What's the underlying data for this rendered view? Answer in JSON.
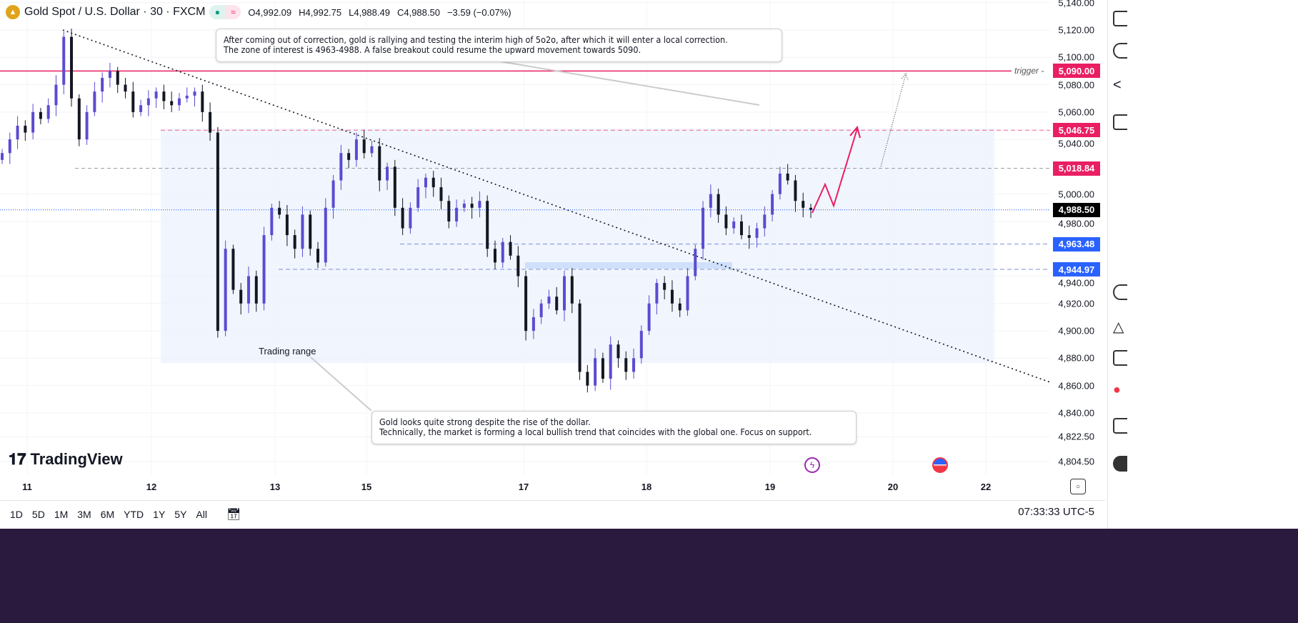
{
  "header": {
    "symbol_title": "Gold Spot / U.S. Dollar · 30 · FXCM",
    "logo_icon": "gold-bars-icon",
    "status_dot_color": "#089981",
    "wave_icon": "≈",
    "open": "O4,992.09",
    "high": "H4,992.75",
    "low": "L4,988.49",
    "close": "C4,988.50",
    "change": "−3.59 (−0.07%)"
  },
  "price_axis": [
    "5,140.00",
    "5,120.00",
    "5,100.00",
    "5,080.00",
    "5,060.00",
    "5,040.00",
    "5,000.00",
    "4,980.00",
    "4,940.00",
    "4,920.00",
    "4,900.00",
    "4,880.00",
    "4,860.00",
    "4,840.00",
    "4,822.50",
    "4,804.50"
  ],
  "price_axis_values": [
    5140,
    5120,
    5100,
    5080,
    5060,
    5040,
    5000,
    4980,
    4940,
    4920,
    4900,
    4880,
    4860,
    4840,
    4822.5,
    4804.5
  ],
  "levels": [
    {
      "label": "5,090.00",
      "value": 5090,
      "color": "#e91e63",
      "name": "trigger"
    },
    {
      "label": "5,046.75",
      "value": 5046.75,
      "color": "#e91e63"
    },
    {
      "label": "5,018.84",
      "value": 5018.84,
      "color": "#e91e63"
    },
    {
      "label": "4,988.50",
      "value": 4988.5,
      "color": "#000000"
    },
    {
      "label": "4,963.48",
      "value": 4963.48,
      "color": "#2962ff"
    },
    {
      "label": "4,944.97",
      "value": 4944.97,
      "color": "#2962ff"
    }
  ],
  "trigger_label": "trigger -",
  "notes": {
    "top": [
      "After coming out of correction, gold is rallying and testing the interim high of 5o2o, after which it will enter a local correction.",
      "The zone of interest is 4963-4988. A false breakout could resume the upward movement towards 5090."
    ],
    "bottom": [
      "Gold looks quite strong despite the rise of the dollar.",
      "Technically, the market is forming a local bullish trend that coincides with the global one. Focus on support."
    ],
    "range_label": "Trading range"
  },
  "time_axis": [
    "11",
    "12",
    "13",
    "15",
    "17",
    "18",
    "19",
    "20",
    "22"
  ],
  "brand": "TradingView",
  "ranges": [
    "1D",
    "5D",
    "1M",
    "3M",
    "6M",
    "YTD",
    "1Y",
    "5Y",
    "All"
  ],
  "clock": "07:33:33 UTC-5",
  "chart_data": {
    "type": "candlestick",
    "symbol": "Gold Spot / U.S. Dollar",
    "interval": "30",
    "ylim": [
      4800,
      5142
    ],
    "up_color": "#5b4bd1",
    "down_color": "#131722",
    "closes": [
      5030,
      5040,
      5050,
      5045,
      5060,
      5055,
      5065,
      5080,
      5115,
      5070,
      5040,
      5060,
      5075,
      5085,
      5090,
      5080,
      5075,
      5060,
      5065,
      5070,
      5075,
      5068,
      5065,
      5070,
      5072,
      5075,
      5060,
      5045,
      4900,
      4960,
      4930,
      4920,
      4940,
      4920,
      4970,
      4990,
      4985,
      4970,
      4960,
      4985,
      4960,
      4950,
      4990,
      5010,
      5030,
      5025,
      5040,
      5030,
      5035,
      5010,
      5020,
      4990,
      4975,
      4990,
      5005,
      5012,
      5005,
      4995,
      4980,
      4990,
      4993,
      4990,
      4995,
      4960,
      4950,
      4965,
      4955,
      4940,
      4900,
      4910,
      4920,
      4925,
      4915,
      4940,
      4920,
      4870,
      4860,
      4880,
      4865,
      4890,
      4880,
      4870,
      4880,
      4900,
      4920,
      4935,
      4930,
      4920,
      4915,
      4940,
      4960,
      4990,
      5000,
      4985,
      4975,
      4980,
      4970,
      4968,
      4975,
      4985,
      5000,
      5015,
      5010,
      4995,
      4990,
      4988.5
    ]
  }
}
